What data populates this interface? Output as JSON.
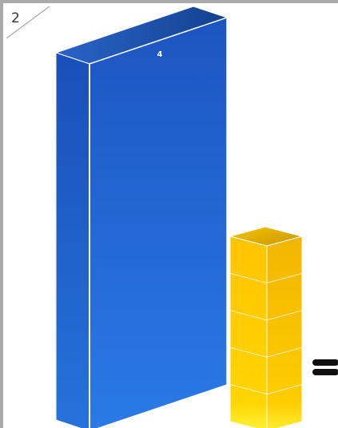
{
  "panel": {
    "number": "2"
  },
  "blue_block": {
    "label": "4",
    "color": "#1f5fcf"
  },
  "yellow_stack": {
    "unit_count": 5,
    "color": "#ffcc00"
  },
  "equals_sign": {
    "symbol": "="
  }
}
